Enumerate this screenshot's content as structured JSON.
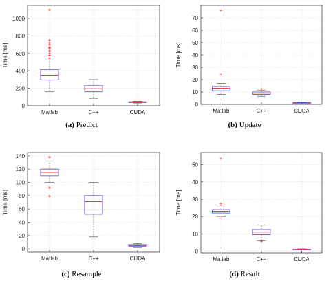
{
  "chart_data": [
    {
      "type": "box",
      "caption_tag": "(a)",
      "caption_text": "Predict",
      "ylabel": "Time [ms]",
      "ylim": [
        0,
        1150
      ],
      "yticks": [
        0,
        200,
        400,
        600,
        800,
        1000
      ],
      "grid": true,
      "categories": [
        "Matlab",
        "C++",
        "CUDA"
      ],
      "boxes": [
        {
          "min": 160,
          "q1": 295,
          "median": 350,
          "q3": 415,
          "max": 525,
          "outliers": [
            545,
            580,
            600,
            630,
            660,
            670,
            700,
            720,
            750,
            1100
          ]
        },
        {
          "min": 85,
          "q1": 160,
          "median": 195,
          "q3": 235,
          "max": 300,
          "outliers": []
        },
        {
          "min": 30,
          "q1": 38,
          "median": 42,
          "q3": 46,
          "max": 52,
          "outliers": []
        }
      ]
    },
    {
      "type": "box",
      "caption_tag": "(b)",
      "caption_text": "Update",
      "ylabel": "Time [ms]",
      "ylim": [
        0,
        80
      ],
      "yticks": [
        0,
        10,
        20,
        30,
        40,
        50,
        60,
        70
      ],
      "grid": true,
      "categories": [
        "Matlab",
        "C++",
        "CUDA"
      ],
      "boxes": [
        {
          "min": 8,
          "q1": 11,
          "median": 13,
          "q3": 14.5,
          "max": 17,
          "outliers": [
            24.5,
            76
          ]
        },
        {
          "min": 6.5,
          "q1": 8,
          "median": 9,
          "q3": 10,
          "max": 11.5,
          "outliers": [
            12.5
          ]
        },
        {
          "min": 1,
          "q1": 1.2,
          "median": 1.4,
          "q3": 1.6,
          "max": 1.8,
          "outliers": []
        }
      ]
    },
    {
      "type": "box",
      "caption_tag": "(c)",
      "caption_text": "Resample",
      "ylabel": "Time [ms]",
      "ylim": [
        -5,
        145
      ],
      "yticks": [
        0,
        20,
        40,
        60,
        80,
        100,
        120,
        140
      ],
      "grid": true,
      "categories": [
        "Matlab",
        "C++",
        "CUDA"
      ],
      "boxes": [
        {
          "min": 100,
          "q1": 110,
          "median": 115,
          "q3": 120,
          "max": 132,
          "outliers": [
            79,
            92,
            138
          ]
        },
        {
          "min": 18,
          "q1": 52,
          "median": 71,
          "q3": 80,
          "max": 100,
          "outliers": []
        },
        {
          "min": 2,
          "q1": 4,
          "median": 5,
          "q3": 6.5,
          "max": 8,
          "outliers": []
        }
      ]
    },
    {
      "type": "box",
      "caption_tag": "(d)",
      "caption_text": "Result",
      "ylabel": "Time [ms]",
      "ylim": [
        -1,
        57
      ],
      "yticks": [
        0,
        10,
        20,
        30,
        40,
        50
      ],
      "grid": true,
      "categories": [
        "Matlab",
        "C++",
        "CUDA"
      ],
      "boxes": [
        {
          "min": 20,
          "q1": 22,
          "median": 23,
          "q3": 24,
          "max": 25.5,
          "outliers": [
            19,
            26.5,
            27.5,
            53.5
          ]
        },
        {
          "min": 6,
          "q1": 9.5,
          "median": 11,
          "q3": 12.5,
          "max": 15,
          "outliers": [
            5.5
          ]
        },
        {
          "min": 0.8,
          "q1": 1,
          "median": 1.1,
          "q3": 1.2,
          "max": 1.4,
          "outliers": []
        }
      ]
    }
  ],
  "colors": {
    "box": "#5a5ad6",
    "median": "#e0202a",
    "outlier": "#ff2020",
    "whisker": "#707070",
    "grid": "#d8d8d8",
    "axis": "#444444",
    "tick_label": "#222222"
  }
}
